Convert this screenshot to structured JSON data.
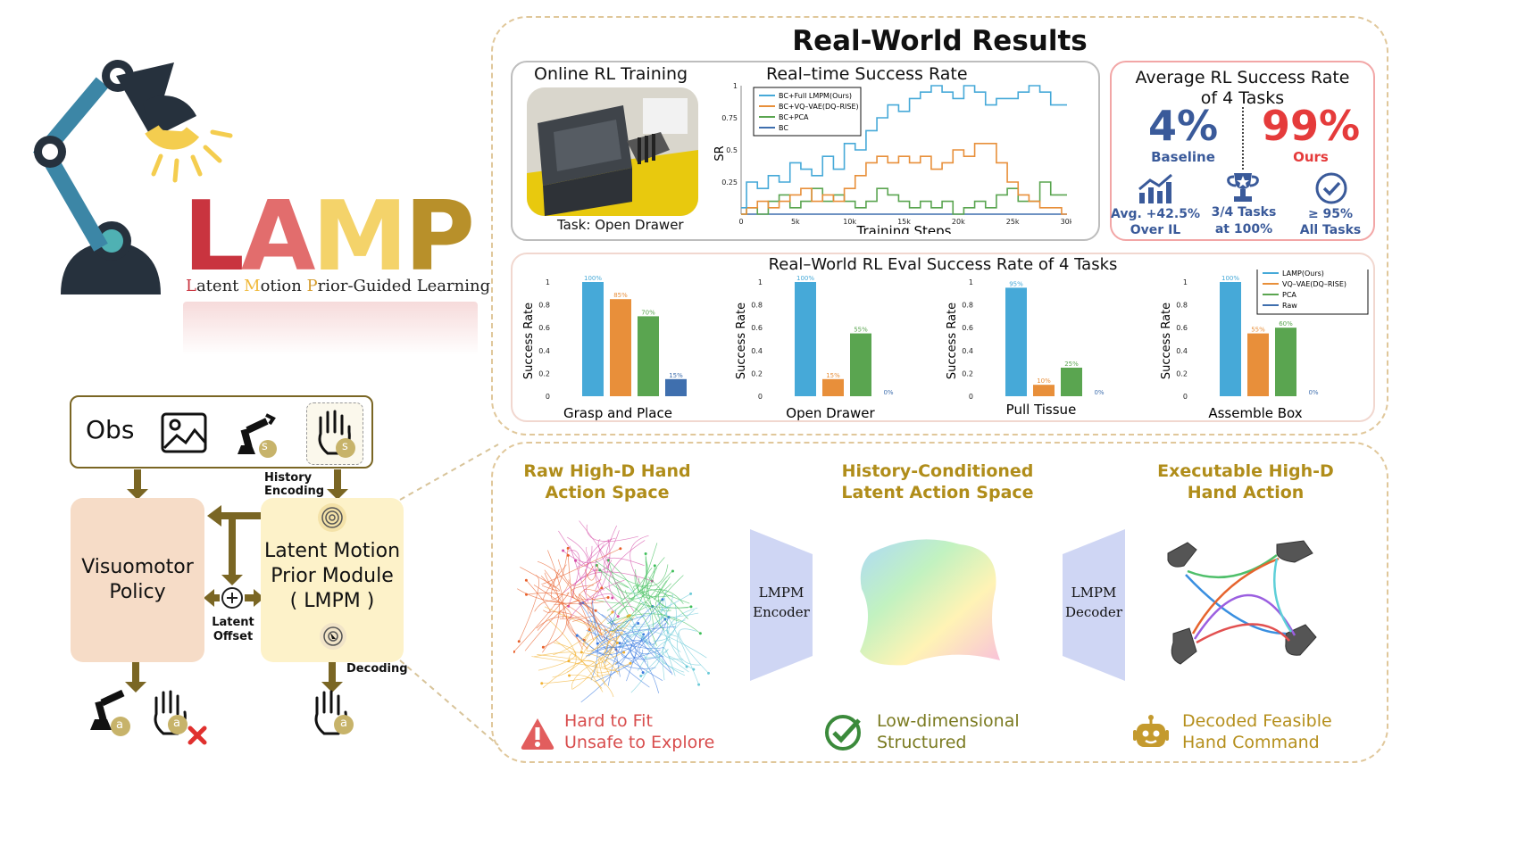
{
  "logo": {
    "letters": [
      "L",
      "A",
      "M",
      "P"
    ],
    "letter_colors": [
      "#c9343f",
      "#e26d6d",
      "#f4d36a",
      "#b8902a"
    ],
    "subtitle_parts": [
      {
        "text": "L",
        "color": "#c9343f"
      },
      {
        "text": "atent ",
        "color": "#222"
      },
      {
        "text": "M",
        "color": "#f0b93b"
      },
      {
        "text": "otion ",
        "color": "#222"
      },
      {
        "text": "P",
        "color": "#d39b2c"
      },
      {
        "text": "rior-Guided Learning",
        "color": "#222"
      }
    ]
  },
  "pipeline": {
    "obs_label": "Obs",
    "history_encoding": "History\nEncoding",
    "visuomotor_policy": "Visuomotor\nPolicy",
    "lmpm": "Latent Motion\nPrior Module\n( LMPM )",
    "latent_offset": "Latent\nOffset",
    "decoding": "Decoding",
    "badge_s": "s",
    "badge_a": "a"
  },
  "results": {
    "title": "Real-World Results",
    "online": {
      "title": "Online RL Training",
      "task": "Task: Open Drawer"
    },
    "realtime": {
      "title": "Real–time Success Rate",
      "xlabel": "Training Steps",
      "ylabel": "SR",
      "xticks": [
        "0",
        "5k",
        "10k",
        "15k",
        "20k",
        "25k",
        "30k"
      ],
      "yticks": [
        "1",
        "0.75",
        "0.5",
        "0.25"
      ],
      "legend": [
        "BC+Full LMPM(Ours)",
        "BC+VQ–VAE(DQ–RISE)",
        "BC+PCA",
        "BC"
      ],
      "colors": [
        "#46a9d8",
        "#e88f3a",
        "#5aa550",
        "#3f6fae"
      ]
    },
    "average": {
      "title": "Average RL Success Rate\nof 4 Tasks",
      "baseline_value": "4%",
      "baseline_label": "Baseline",
      "ours_value": "99%",
      "ours_label": "Ours",
      "stats": [
        {
          "icon": "growth-chart-icon",
          "text": "Avg. +42.5%\nOver IL"
        },
        {
          "icon": "trophy-icon",
          "text": "3/4 Tasks\nat 100%"
        },
        {
          "icon": "check-circle-icon",
          "text": "≥ 95%\nAll Tasks"
        }
      ]
    },
    "eval": {
      "title": "Real–World RL Eval Success Rate of 4 Tasks",
      "ylabel": "Success Rate",
      "yticks": [
        "1",
        "0.8",
        "0.6",
        "0.4",
        "0.2",
        "0"
      ],
      "legend": [
        "LAMP(Ours)",
        "VQ–VAE(DQ–RISE)",
        "PCA",
        "Raw"
      ],
      "colors": [
        "#46a9d8",
        "#e88f3a",
        "#5aa550",
        "#3f6fae"
      ]
    }
  },
  "chart_data": [
    {
      "type": "line",
      "title": "Real–time Success Rate",
      "xlabel": "Training Steps",
      "ylabel": "SR",
      "xlim": [
        0,
        30000
      ],
      "ylim": [
        0,
        1
      ],
      "legend_position": "top-left",
      "x": [
        0,
        1000,
        2000,
        3000,
        4000,
        5000,
        6000,
        7000,
        8000,
        9000,
        10000,
        11000,
        12000,
        13000,
        14000,
        15000,
        16000,
        17000,
        18000,
        19000,
        20000,
        21000,
        22000,
        23000,
        24000,
        25000,
        26000,
        27000,
        28000,
        29000,
        30000
      ],
      "series": [
        {
          "name": "BC+Full LMPM(Ours)",
          "values": [
            0.05,
            0.25,
            0.2,
            0.3,
            0.25,
            0.4,
            0.35,
            0.3,
            0.45,
            0.35,
            0.55,
            0.5,
            0.65,
            0.75,
            0.85,
            0.8,
            0.9,
            0.95,
            1.0,
            0.95,
            0.9,
            1.0,
            0.95,
            0.85,
            0.9,
            0.9,
            0.95,
            1.0,
            0.95,
            0.85,
            0.85
          ]
        },
        {
          "name": "BC+VQ–VAE(DQ–RISE)",
          "values": [
            0.0,
            0.05,
            0.1,
            0.05,
            0.1,
            0.15,
            0.2,
            0.1,
            0.15,
            0.1,
            0.2,
            0.3,
            0.4,
            0.45,
            0.4,
            0.45,
            0.4,
            0.45,
            0.35,
            0.4,
            0.5,
            0.45,
            0.55,
            0.55,
            0.4,
            0.25,
            0.15,
            0.1,
            0.05,
            0.05,
            0.0
          ]
        },
        {
          "name": "BC+PCA",
          "values": [
            0.0,
            0.05,
            0.0,
            0.1,
            0.15,
            0.05,
            0.1,
            0.2,
            0.1,
            0.15,
            0.1,
            0.05,
            0.1,
            0.2,
            0.15,
            0.1,
            0.05,
            0.1,
            0.05,
            0.1,
            0.0,
            0.05,
            0.1,
            0.05,
            0.15,
            0.2,
            0.1,
            0.1,
            0.25,
            0.15,
            0.15
          ]
        },
        {
          "name": "BC",
          "values": [
            0,
            0,
            0,
            0,
            0,
            0,
            0,
            0,
            0,
            0,
            0,
            0,
            0,
            0,
            0,
            0,
            0,
            0,
            0,
            0,
            0,
            0,
            0,
            0,
            0,
            0,
            0,
            0,
            0,
            0,
            0
          ]
        }
      ]
    },
    {
      "type": "bar",
      "title": "Real–World RL Eval Success Rate of 4 Tasks",
      "ylabel": "Success Rate",
      "ylim": [
        0,
        1
      ],
      "legend_position": "top-right",
      "categories": [
        "Grasp and Place",
        "Open Drawer",
        "Pull Tissue",
        "Assemble Box"
      ],
      "series": [
        {
          "name": "LAMP(Ours)",
          "values": [
            1.0,
            1.0,
            0.95,
            1.0
          ],
          "labels": [
            "100%",
            "100%",
            "95%",
            "100%"
          ]
        },
        {
          "name": "VQ–VAE(DQ–RISE)",
          "values": [
            0.85,
            0.15,
            0.1,
            0.55
          ],
          "labels": [
            "85%",
            "15%",
            "10%",
            "55%"
          ]
        },
        {
          "name": "PCA",
          "values": [
            0.7,
            0.55,
            0.25,
            0.6
          ],
          "labels": [
            "70%",
            "55%",
            "25%",
            "60%"
          ]
        },
        {
          "name": "Raw",
          "values": [
            0.15,
            0.0,
            0.0,
            0.0
          ],
          "labels": [
            "15%",
            "0%",
            "0%",
            "0%"
          ]
        }
      ]
    }
  ],
  "bottom": {
    "col1_title": "Raw High-D Hand\nAction Space",
    "col2_title": "History-Conditioned\nLatent Action Space",
    "col3_title": "Executable High-D\nHand Action",
    "encoder": "LMPM\nEncoder",
    "decoder": "LMPM\nDecoder",
    "note1": "Hard to Fit\nUnsafe to Explore",
    "note2": "Low-dimensional\nStructured",
    "note3": "Decoded Feasible\nHand Command"
  }
}
